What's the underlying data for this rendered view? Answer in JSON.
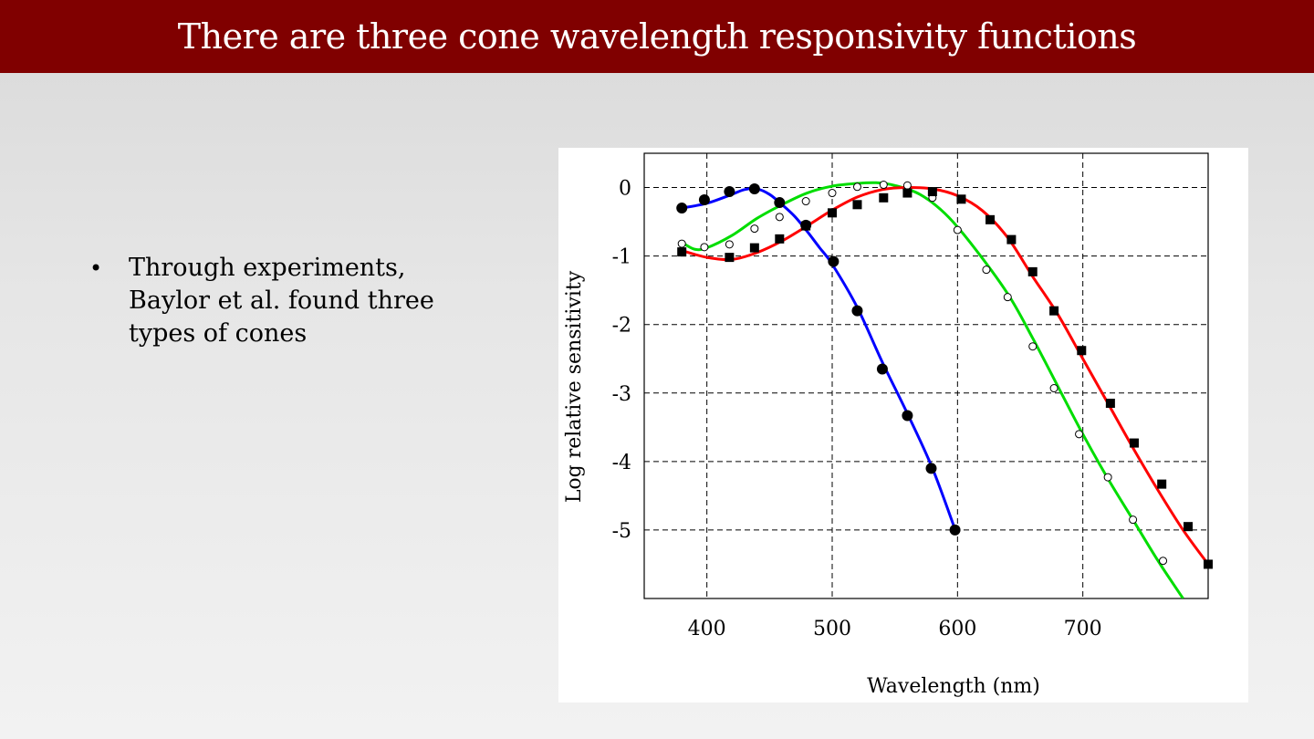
{
  "title": "There are three cone wavelength responsivity functions",
  "bullets": [
    "Through experiments, Baylor et al. found three types of cones"
  ],
  "chart_data": {
    "type": "line",
    "xlabel": "Wavelength (nm)",
    "ylabel": "Log relative sensitivity",
    "xlim": [
      350,
      800
    ],
    "ylim": [
      -6,
      0.5
    ],
    "x_ticks": [
      400,
      500,
      600,
      700
    ],
    "y_ticks": [
      0,
      -1,
      -2,
      -3,
      -4,
      -5
    ],
    "x_tick_labels": [
      "400",
      "500",
      "600",
      "700"
    ],
    "y_tick_labels": [
      "0",
      "-1",
      "-2",
      "-3",
      "-4",
      "-5"
    ],
    "grid": true,
    "series": [
      {
        "color": "#0000ff",
        "marker": "filled-circle",
        "curve": [
          [
            380,
            -0.3
          ],
          [
            400,
            -0.23
          ],
          [
            420,
            -0.1
          ],
          [
            430,
            -0.03
          ],
          [
            440,
            -0.02
          ],
          [
            450,
            -0.1
          ],
          [
            460,
            -0.25
          ],
          [
            470,
            -0.42
          ],
          [
            480,
            -0.64
          ],
          [
            490,
            -0.88
          ],
          [
            500,
            -1.12
          ],
          [
            520,
            -1.75
          ],
          [
            540,
            -2.55
          ],
          [
            560,
            -3.3
          ],
          [
            580,
            -4.1
          ],
          [
            598,
            -4.99
          ]
        ],
        "points": [
          [
            380,
            -0.3
          ],
          [
            398,
            -0.18
          ],
          [
            418,
            -0.06
          ],
          [
            438,
            -0.02
          ],
          [
            458,
            -0.22
          ],
          [
            479,
            -0.55
          ],
          [
            501,
            -1.08
          ],
          [
            520,
            -1.8
          ],
          [
            540,
            -2.65
          ],
          [
            560,
            -3.33
          ],
          [
            579,
            -4.1
          ],
          [
            598,
            -5.0
          ]
        ]
      },
      {
        "color": "#00dd00",
        "marker": "open-circle",
        "curve": [
          [
            380,
            -0.8
          ],
          [
            390,
            -0.9
          ],
          [
            400,
            -0.88
          ],
          [
            420,
            -0.7
          ],
          [
            440,
            -0.45
          ],
          [
            460,
            -0.25
          ],
          [
            480,
            -0.08
          ],
          [
            500,
            0.02
          ],
          [
            520,
            0.06
          ],
          [
            535,
            0.07
          ],
          [
            550,
            0.03
          ],
          [
            570,
            -0.1
          ],
          [
            590,
            -0.38
          ],
          [
            610,
            -0.8
          ],
          [
            640,
            -1.55
          ],
          [
            660,
            -2.2
          ],
          [
            680,
            -2.9
          ],
          [
            700,
            -3.6
          ],
          [
            720,
            -4.25
          ],
          [
            740,
            -4.85
          ],
          [
            760,
            -5.45
          ],
          [
            780,
            -6.0
          ]
        ],
        "points": [
          [
            380,
            -0.82
          ],
          [
            398,
            -0.87
          ],
          [
            418,
            -0.83
          ],
          [
            438,
            -0.6
          ],
          [
            458,
            -0.43
          ],
          [
            479,
            -0.2
          ],
          [
            500,
            -0.08
          ],
          [
            520,
            0.01
          ],
          [
            541,
            0.04
          ],
          [
            560,
            0.03
          ],
          [
            580,
            -0.15
          ],
          [
            600,
            -0.62
          ],
          [
            623,
            -1.2
          ],
          [
            640,
            -1.6
          ],
          [
            660,
            -2.32
          ],
          [
            677,
            -2.93
          ],
          [
            697,
            -3.6
          ],
          [
            720,
            -4.23
          ],
          [
            740,
            -4.85
          ],
          [
            764,
            -5.45
          ]
        ]
      },
      {
        "color": "#ff0000",
        "marker": "filled-square",
        "curve": [
          [
            380,
            -0.92
          ],
          [
            400,
            -1.02
          ],
          [
            420,
            -1.05
          ],
          [
            440,
            -0.95
          ],
          [
            460,
            -0.78
          ],
          [
            480,
            -0.56
          ],
          [
            500,
            -0.33
          ],
          [
            520,
            -0.14
          ],
          [
            540,
            -0.03
          ],
          [
            560,
            0.0
          ],
          [
            580,
            -0.02
          ],
          [
            600,
            -0.12
          ],
          [
            620,
            -0.34
          ],
          [
            640,
            -0.73
          ],
          [
            660,
            -1.3
          ],
          [
            680,
            -1.85
          ],
          [
            700,
            -2.5
          ],
          [
            720,
            -3.15
          ],
          [
            740,
            -3.8
          ],
          [
            760,
            -4.42
          ],
          [
            780,
            -5.0
          ],
          [
            800,
            -5.5
          ]
        ],
        "points": [
          [
            380,
            -0.94
          ],
          [
            418,
            -1.02
          ],
          [
            438,
            -0.88
          ],
          [
            458,
            -0.75
          ],
          [
            479,
            -0.56
          ],
          [
            500,
            -0.37
          ],
          [
            520,
            -0.25
          ],
          [
            541,
            -0.15
          ],
          [
            560,
            -0.08
          ],
          [
            580,
            -0.06
          ],
          [
            603,
            -0.17
          ],
          [
            626,
            -0.47
          ],
          [
            643,
            -0.76
          ],
          [
            660,
            -1.23
          ],
          [
            677,
            -1.8
          ],
          [
            699,
            -2.38
          ],
          [
            722,
            -3.15
          ],
          [
            741,
            -3.73
          ],
          [
            763,
            -4.33
          ],
          [
            784,
            -4.95
          ],
          [
            800,
            -5.5
          ]
        ]
      }
    ]
  }
}
